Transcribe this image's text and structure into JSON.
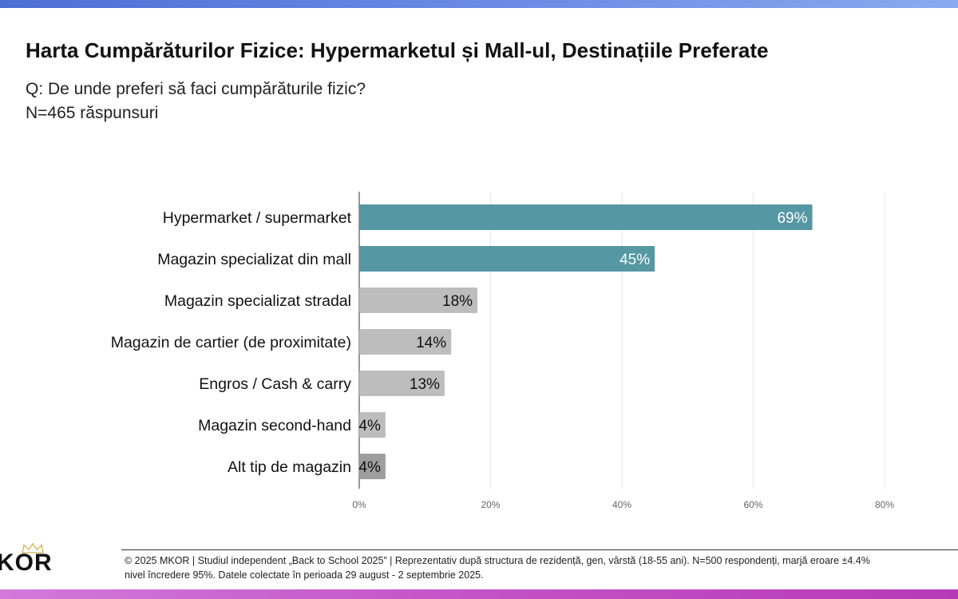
{
  "header": {
    "title": "Harta Cumpărăturilor Fizice: Hypermarketul și Mall-ul, Destinațiile Preferate",
    "question": "Q: De unde preferi să faci cumpărăturile fizic?",
    "sample": "N=465 răspunsuri"
  },
  "colors": {
    "highlight": "#5597a3",
    "neutral": "#bdbdbd",
    "neutral_dark": "#9e9e9e",
    "top_band": "#5b7ee0",
    "bottom_band": "#c452c7"
  },
  "chart_data": {
    "type": "bar",
    "orientation": "horizontal",
    "title": "",
    "xlabel": "",
    "ylabel": "",
    "categories": [
      "Hypermarket / supermarket",
      "Magazin specializat din mall",
      "Magazin specializat stradal",
      "Magazin de cartier (de proximitate)",
      "Engros / Cash & carry",
      "Magazin second-hand",
      "Alt tip de magazin"
    ],
    "values": [
      69,
      45,
      18,
      14,
      13,
      4,
      4
    ],
    "value_labels": [
      "69%",
      "45%",
      "18%",
      "14%",
      "13%",
      "4%",
      "4%"
    ],
    "bar_colors": [
      "highlight",
      "highlight",
      "neutral",
      "neutral",
      "neutral",
      "neutral",
      "neutral_dark"
    ],
    "xlim": [
      0,
      80
    ],
    "xticks": [
      0,
      20,
      40,
      60,
      80
    ],
    "xtick_labels": [
      "0%",
      "20%",
      "40%",
      "60%",
      "80%"
    ],
    "grid": true,
    "legend": "none"
  },
  "footer": {
    "line1": "© 2025 MKOR | Studiul independent „Back to School 2025” | Reprezentativ după structura de rezidență, gen, vârstă (18-55 ani). N=500 respondenți, marjă eroare ±4.4%",
    "line2": "nivel încredere 95%. Datele colectate în perioada 29 august - 2 septembrie 2025."
  },
  "logo": {
    "text": "MKOR",
    "visible_text": "KOR",
    "icon": "crown-icon"
  }
}
